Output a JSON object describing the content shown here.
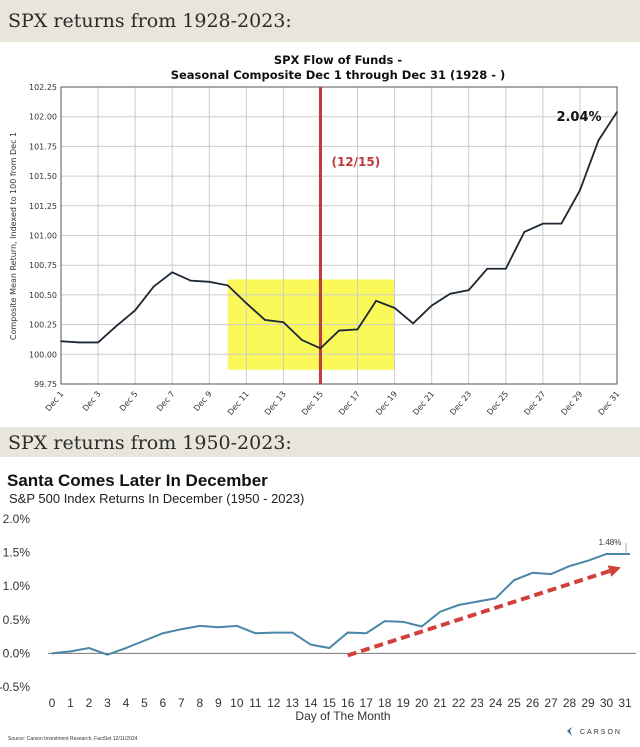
{
  "headers": [
    "SPX returns from 1928-2023:",
    "SPX returns from 1950-2023:"
  ],
  "chart_data": [
    {
      "type": "line",
      "title": "SPX Flow of Funds -",
      "subtitle": "Seasonal Composite Dec 1 through Dec 31 (1928 - )",
      "ylabel": "Composite Mean Return, Indexed to 100 from Dec 1",
      "xlabel": "",
      "ylim": [
        99.75,
        102.25
      ],
      "yticks": [
        "102.25",
        "102.00",
        "101.75",
        "101.50",
        "101.25",
        "101.00",
        "100.75",
        "100.50",
        "100.25",
        "100.00",
        "99.75"
      ],
      "xtick_labels": [
        "Dec 1",
        "Dec 3",
        "Dec 5",
        "Dec 7",
        "Dec 9",
        "Dec 11",
        "Dec 13",
        "Dec 15",
        "Dec 17",
        "Dec 19",
        "Dec 21",
        "Dec 23",
        "Dec 25",
        "Dec 27",
        "Dec 29",
        "Dec 31"
      ],
      "x": [
        1,
        2,
        3,
        4,
        5,
        6,
        7,
        8,
        9,
        10,
        11,
        12,
        13,
        14,
        15,
        16,
        17,
        18,
        19,
        20,
        21,
        22,
        23,
        24,
        25,
        26,
        27,
        28,
        29,
        30,
        31
      ],
      "values": [
        100.11,
        100.1,
        100.1,
        100.24,
        100.37,
        100.57,
        100.69,
        100.62,
        100.61,
        100.58,
        100.43,
        100.29,
        100.27,
        100.12,
        100.05,
        100.2,
        100.21,
        100.45,
        100.39,
        100.26,
        100.41,
        100.51,
        100.54,
        100.72,
        100.72,
        101.03,
        101.1,
        101.1,
        101.38,
        101.8,
        102.04
      ],
      "grid": true,
      "line_color": "#1c2733",
      "annotations": {
        "end_label": "2.04%",
        "vline_label": "(12/15)",
        "vline_x": 15,
        "vline_color": "#c0393b",
        "highlight": {
          "x": [
            10,
            19
          ],
          "y": [
            99.87,
            100.63
          ],
          "color": "#fbf95a"
        }
      }
    },
    {
      "type": "line",
      "title": "Santa Comes Later In December",
      "subtitle": "S&P 500 Index Returns In December (1950 - 2023)",
      "xlabel": "Day of The Month",
      "ylabel": "",
      "ylim": [
        -0.5,
        2.0
      ],
      "yticks": [
        "2.0%",
        "1.5%",
        "1.0%",
        "0.5%",
        "0.0%",
        "-0.5%"
      ],
      "x": [
        0,
        1,
        2,
        3,
        4,
        5,
        6,
        7,
        8,
        9,
        10,
        11,
        12,
        13,
        14,
        15,
        16,
        17,
        18,
        19,
        20,
        21,
        22,
        23,
        24,
        25,
        26,
        27,
        28,
        29,
        30,
        31
      ],
      "values": [
        0.0,
        0.03,
        0.08,
        -0.02,
        0.08,
        0.19,
        0.3,
        0.36,
        0.41,
        0.39,
        0.41,
        0.3,
        0.31,
        0.31,
        0.13,
        0.08,
        0.31,
        0.3,
        0.48,
        0.47,
        0.4,
        0.62,
        0.72,
        0.77,
        0.82,
        1.09,
        1.2,
        1.18,
        1.3,
        1.38,
        1.48,
        1.48
      ],
      "grid": false,
      "line_color": "#4a86a8",
      "annotations": {
        "end_label": "1.48%",
        "trend_arrow": {
          "from": [
            16,
            -0.03
          ],
          "to": [
            31,
            1.28
          ],
          "color": "#d2403c"
        }
      },
      "source": "Source: Carson Investment Research, FactSet 12/11/2024",
      "logo": "CARSON"
    }
  ]
}
